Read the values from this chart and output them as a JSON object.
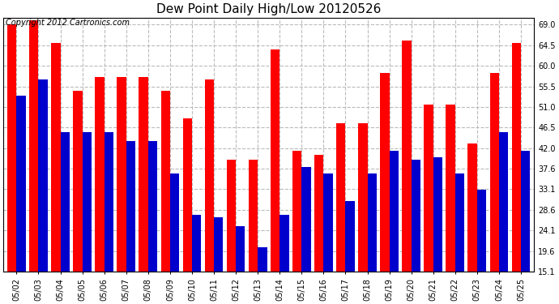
{
  "title": "Dew Point Daily High/Low 20120526",
  "copyright": "Copyright 2012 Cartronics.com",
  "dates": [
    "05/02",
    "05/03",
    "05/04",
    "05/05",
    "05/06",
    "05/07",
    "05/08",
    "05/09",
    "05/10",
    "05/11",
    "05/12",
    "05/13",
    "05/14",
    "05/15",
    "05/16",
    "05/17",
    "05/18",
    "05/19",
    "05/20",
    "05/21",
    "05/22",
    "05/23",
    "05/24",
    "05/25"
  ],
  "high": [
    69.0,
    70.0,
    65.0,
    54.5,
    57.5,
    57.5,
    57.5,
    54.5,
    48.5,
    57.0,
    39.5,
    39.5,
    63.5,
    41.5,
    40.5,
    47.5,
    47.5,
    58.5,
    65.5,
    51.5,
    51.5,
    43.0,
    58.5,
    65.0
  ],
  "low": [
    53.5,
    57.0,
    45.5,
    45.5,
    45.5,
    43.5,
    43.5,
    36.5,
    27.5,
    27.0,
    25.0,
    20.5,
    27.5,
    38.0,
    36.5,
    30.5,
    36.5,
    41.5,
    39.5,
    40.0,
    36.5,
    33.0,
    45.5,
    41.5
  ],
  "high_color": "#ff0000",
  "low_color": "#0000cc",
  "background_color": "#ffffff",
  "plot_background": "#ffffff",
  "yticks": [
    15.1,
    19.6,
    24.1,
    28.6,
    33.1,
    37.6,
    42.0,
    46.5,
    51.0,
    55.5,
    60.0,
    64.5,
    69.0
  ],
  "ylim_min": 15.1,
  "ylim_max": 70.5,
  "title_fontsize": 11,
  "copyright_fontsize": 7,
  "bar_width": 0.42,
  "figwidth": 6.9,
  "figheight": 3.75
}
